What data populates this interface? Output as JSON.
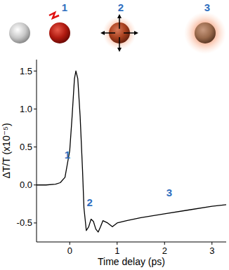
{
  "chart_data": {
    "type": "line",
    "x_label": "Time delay (ps)",
    "y_label": "ΔT/T  (x10⁻⁵)",
    "x": [
      -0.7,
      -0.5,
      -0.3,
      -0.2,
      -0.1,
      0,
      0.05,
      0.1,
      0.13,
      0.17,
      0.22,
      0.27,
      0.3,
      0.35,
      0.4,
      0.45,
      0.5,
      0.55,
      0.6,
      0.65,
      0.7,
      0.8,
      0.9,
      1.0,
      1.2,
      1.5,
      2.0,
      2.5,
      3.0,
      3.3
    ],
    "values": [
      0,
      0,
      0.01,
      0.03,
      0.1,
      0.45,
      0.9,
      1.4,
      1.5,
      1.4,
      0.9,
      0.2,
      -0.3,
      -0.6,
      -0.55,
      -0.45,
      -0.48,
      -0.58,
      -0.62,
      -0.55,
      -0.47,
      -0.5,
      -0.55,
      -0.5,
      -0.47,
      -0.43,
      -0.38,
      -0.33,
      -0.28,
      -0.26
    ],
    "color": "#000000",
    "xlim": [
      -0.7,
      3.3
    ],
    "ylim": [
      -0.75,
      1.65
    ],
    "xticks": [
      0,
      1,
      2,
      3
    ],
    "yticks": [
      -0.5,
      {
        "value": 0,
        "label": "0.0"
      },
      0.5,
      {
        "value": 1,
        "label": "1.0"
      },
      1.5
    ],
    "annotations": [
      {
        "text": "1",
        "x": -0.05,
        "y": 0.35
      },
      {
        "text": "2",
        "x": 0.42,
        "y": -0.28
      },
      {
        "text": "3",
        "x": 2.1,
        "y": -0.15
      }
    ],
    "illustration_labels": [
      "1",
      "2",
      "3"
    ]
  }
}
